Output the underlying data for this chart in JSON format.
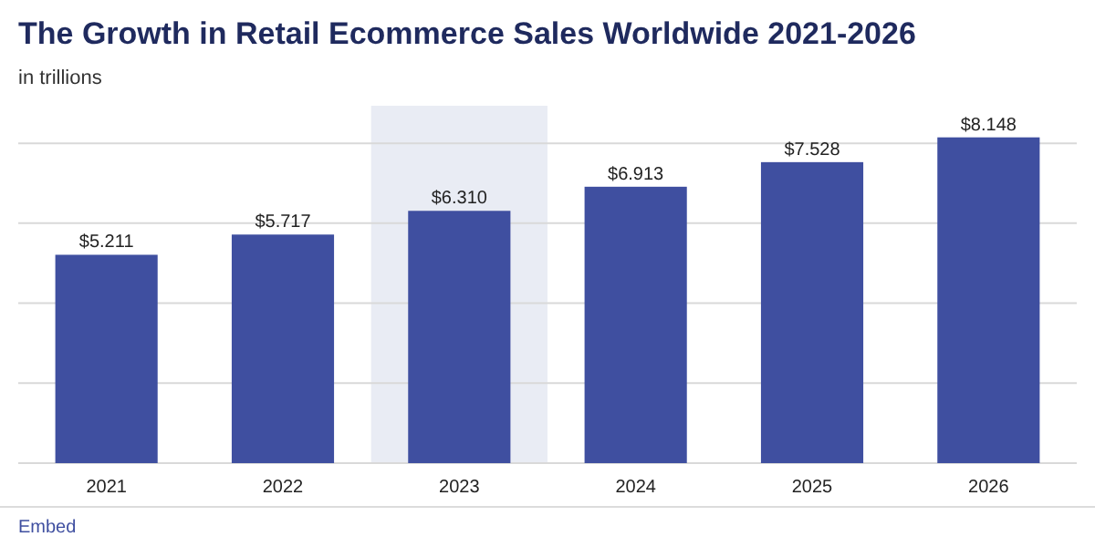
{
  "chart_data": {
    "type": "bar",
    "title": "The Growth in Retail Ecommerce Sales Worldwide 2021-2026",
    "subtitle": "in trillions",
    "categories": [
      "2021",
      "2022",
      "2023",
      "2024",
      "2025",
      "2026"
    ],
    "values": [
      5.211,
      5.717,
      6.31,
      6.913,
      7.528,
      8.148
    ],
    "value_labels": [
      "$5.211",
      "$5.717",
      "$6.310",
      "$6.913",
      "$7.528",
      "$8.148"
    ],
    "color": "#3f4fa0",
    "ylim": [
      0,
      8.3
    ],
    "yticks": [
      {
        "value": 0,
        "label": null
      },
      {
        "value": 2,
        "label": null
      },
      {
        "value": 4,
        "label": null
      },
      {
        "value": 6,
        "label": null
      },
      {
        "value": 8,
        "label": null
      }
    ],
    "grid": "y",
    "tick_labels": "x",
    "bands": [
      {
        "axis": "x",
        "from": "2023",
        "to": "2023",
        "color": "#e9ecf4"
      }
    ],
    "annotations": [
      "Embed"
    ]
  }
}
